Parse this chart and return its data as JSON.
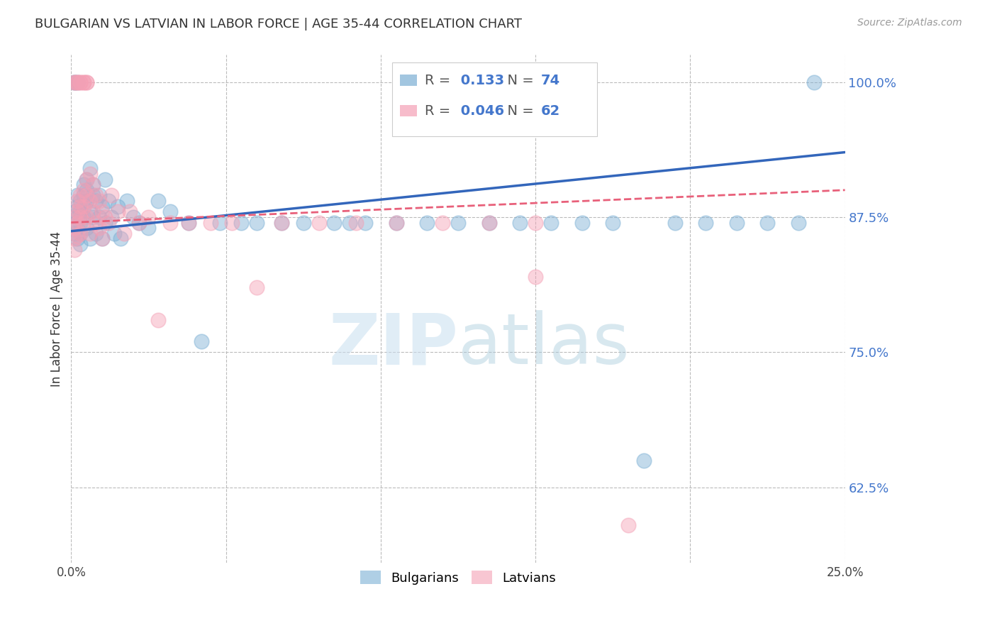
{
  "title": "BULGARIAN VS LATVIAN IN LABOR FORCE | AGE 35-44 CORRELATION CHART",
  "source_text": "Source: ZipAtlas.com",
  "ylabel": "In Labor Force | Age 35-44",
  "x_min": 0.0,
  "x_max": 0.25,
  "y_min": 0.555,
  "y_max": 1.025,
  "x_ticks": [
    0.0,
    0.05,
    0.1,
    0.15,
    0.2,
    0.25
  ],
  "x_tick_labels": [
    "0.0%",
    "",
    "",
    "",
    "",
    "25.0%"
  ],
  "y_ticks": [
    0.625,
    0.75,
    0.875,
    1.0
  ],
  "y_tick_labels": [
    "62.5%",
    "75.0%",
    "87.5%",
    "100.0%"
  ],
  "blue_color": "#7BAFD4",
  "pink_color": "#F4A0B5",
  "blue_line_color": "#3366BB",
  "pink_line_color": "#E8607A",
  "R_blue": 0.133,
  "N_blue": 74,
  "R_pink": 0.046,
  "N_pink": 62,
  "bg_color": "#FFFFFF",
  "grid_color": "#BBBBBB",
  "title_color": "#333333",
  "right_label_color": "#4477CC",
  "blue_scatter_x": [
    0.001,
    0.001,
    0.001,
    0.002,
    0.002,
    0.002,
    0.002,
    0.002,
    0.003,
    0.003,
    0.003,
    0.003,
    0.003,
    0.004,
    0.004,
    0.004,
    0.004,
    0.005,
    0.005,
    0.005,
    0.005,
    0.006,
    0.006,
    0.006,
    0.007,
    0.007,
    0.007,
    0.008,
    0.008,
    0.009,
    0.009,
    0.01,
    0.01,
    0.011,
    0.011,
    0.012,
    0.013,
    0.014,
    0.015,
    0.016,
    0.018,
    0.02,
    0.022,
    0.025,
    0.028,
    0.032,
    0.038,
    0.042,
    0.048,
    0.055,
    0.06,
    0.068,
    0.075,
    0.085,
    0.09,
    0.095,
    0.105,
    0.115,
    0.125,
    0.135,
    0.145,
    0.155,
    0.165,
    0.175,
    0.185,
    0.195,
    0.205,
    0.215,
    0.225,
    0.235,
    0.001,
    0.001,
    0.002,
    0.24
  ],
  "blue_scatter_y": [
    0.88,
    0.87,
    0.86,
    0.885,
    0.875,
    0.865,
    0.855,
    0.895,
    0.89,
    0.88,
    0.87,
    0.86,
    0.85,
    0.905,
    0.895,
    0.885,
    0.875,
    0.91,
    0.9,
    0.89,
    0.865,
    0.92,
    0.88,
    0.855,
    0.905,
    0.895,
    0.875,
    0.89,
    0.86,
    0.895,
    0.875,
    0.885,
    0.855,
    0.91,
    0.87,
    0.89,
    0.875,
    0.86,
    0.885,
    0.855,
    0.89,
    0.875,
    0.87,
    0.865,
    0.89,
    0.88,
    0.87,
    0.76,
    0.87,
    0.87,
    0.87,
    0.87,
    0.87,
    0.87,
    0.87,
    0.87,
    0.87,
    0.87,
    0.87,
    0.87,
    0.87,
    0.87,
    0.87,
    0.87,
    0.65,
    0.87,
    0.87,
    0.87,
    0.87,
    0.87,
    1.0,
    1.0,
    1.0,
    1.0
  ],
  "pink_scatter_x": [
    0.001,
    0.001,
    0.001,
    0.001,
    0.002,
    0.002,
    0.002,
    0.002,
    0.003,
    0.003,
    0.003,
    0.003,
    0.004,
    0.004,
    0.004,
    0.005,
    0.005,
    0.005,
    0.006,
    0.006,
    0.006,
    0.007,
    0.007,
    0.008,
    0.008,
    0.009,
    0.009,
    0.01,
    0.01,
    0.011,
    0.012,
    0.013,
    0.015,
    0.017,
    0.019,
    0.022,
    0.025,
    0.028,
    0.032,
    0.038,
    0.045,
    0.052,
    0.06,
    0.068,
    0.08,
    0.092,
    0.105,
    0.12,
    0.135,
    0.15,
    0.001,
    0.001,
    0.002,
    0.002,
    0.003,
    0.003,
    0.004,
    0.004,
    0.005,
    0.005,
    0.15,
    0.18
  ],
  "pink_scatter_y": [
    0.875,
    0.865,
    0.855,
    0.845,
    0.89,
    0.88,
    0.87,
    0.858,
    0.895,
    0.885,
    0.875,
    0.86,
    0.9,
    0.885,
    0.87,
    0.91,
    0.895,
    0.875,
    0.915,
    0.89,
    0.86,
    0.905,
    0.88,
    0.895,
    0.87,
    0.89,
    0.865,
    0.88,
    0.855,
    0.875,
    0.87,
    0.895,
    0.88,
    0.86,
    0.88,
    0.87,
    0.875,
    0.78,
    0.87,
    0.87,
    0.87,
    0.87,
    0.81,
    0.87,
    0.87,
    0.87,
    0.87,
    0.87,
    0.87,
    0.87,
    1.0,
    1.0,
    1.0,
    1.0,
    1.0,
    1.0,
    1.0,
    1.0,
    1.0,
    1.0,
    0.82,
    0.59
  ]
}
